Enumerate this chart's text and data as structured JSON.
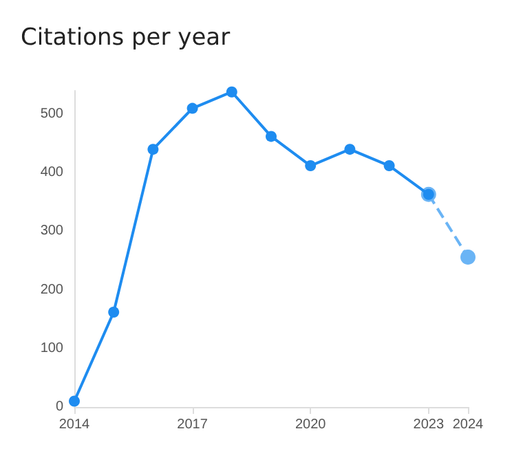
{
  "chart_data": {
    "type": "line",
    "title": "Citations per year",
    "x": [
      2014,
      2015,
      2016,
      2017,
      2018,
      2019,
      2020,
      2021,
      2022,
      2023,
      2024
    ],
    "series": [
      {
        "color": "#1e8cf0",
        "line_style": "solid",
        "values": [
          10,
          162,
          440,
          510,
          538,
          462,
          412,
          440,
          412,
          363,
          null
        ]
      },
      {
        "color": "#6ab4f5",
        "line_style": "dashed",
        "values": [
          null,
          null,
          null,
          null,
          null,
          null,
          null,
          null,
          null,
          363,
          256
        ]
      }
    ],
    "xlim": [
      2014,
      2024
    ],
    "xticks": [
      2014,
      2017,
      2020,
      2023,
      2024
    ],
    "ylim": [
      0,
      540
    ],
    "yticks": [
      0,
      100,
      200,
      300,
      400,
      500
    ],
    "grid": false,
    "marker": "circle"
  }
}
